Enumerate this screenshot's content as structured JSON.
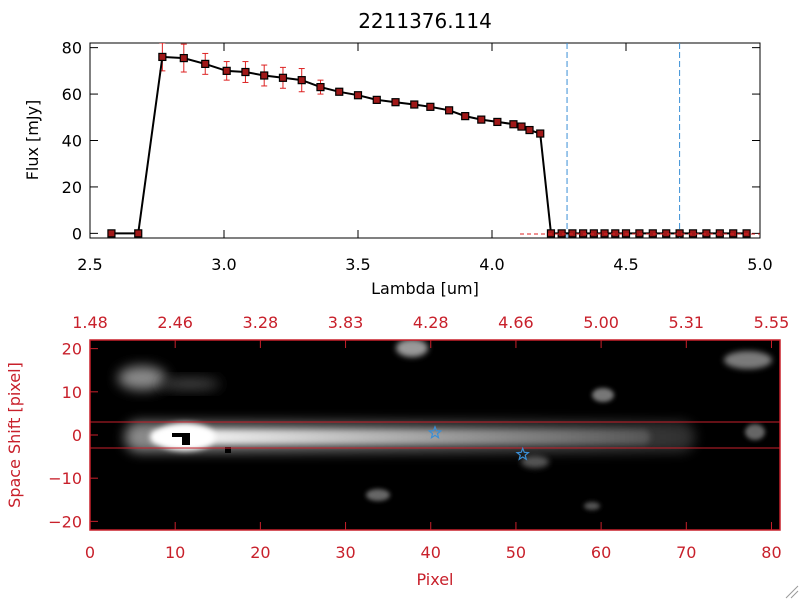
{
  "colors": {
    "axis": "#000000",
    "accent_red": "#c8202b",
    "errbar_red": "#dd2222",
    "marker_red": "#a01818",
    "guide_blue": "#3a8fd6",
    "star_blue": "#3a8fd6",
    "image_bg": "#000000"
  },
  "chart_data": [
    {
      "type": "line",
      "title": "2211376.114",
      "xlabel": "Lambda [um]",
      "ylabel": "Flux [mJy]",
      "xlim": [
        2.5,
        5.0
      ],
      "ylim": [
        -2,
        82
      ],
      "x_ticks": [
        2.5,
        3.0,
        3.5,
        4.0,
        4.5,
        5.0
      ],
      "x_tick_labels": [
        "2.5",
        "3.0",
        "3.5",
        "4.0",
        "4.5",
        "5.0"
      ],
      "y_ticks": [
        0,
        20,
        40,
        60,
        80
      ],
      "y_tick_labels": [
        "0",
        "20",
        "40",
        "60",
        "80"
      ],
      "guide_lines_x": [
        4.28,
        4.7
      ],
      "series": [
        {
          "x": [
            2.58,
            2.68,
            2.77,
            2.85,
            2.93,
            3.01,
            3.08,
            3.15,
            3.22,
            3.29,
            3.36,
            3.43,
            3.5,
            3.57,
            3.64,
            3.71,
            3.77,
            3.84,
            3.9,
            3.96,
            4.02,
            4.08,
            4.11,
            4.14,
            4.18,
            4.22,
            4.26,
            4.3,
            4.34,
            4.38,
            4.42,
            4.46,
            4.5,
            4.55,
            4.6,
            4.65,
            4.7,
            4.75,
            4.8,
            4.85,
            4.9,
            4.95
          ],
          "y": [
            0,
            0,
            76,
            75.5,
            73,
            70,
            69.5,
            68,
            67,
            66,
            63,
            61,
            59.5,
            57.5,
            56.5,
            55.5,
            54.5,
            53,
            50.5,
            49,
            48,
            47,
            46,
            44.5,
            43,
            0,
            0,
            0,
            0,
            0,
            0,
            0,
            0,
            0,
            0,
            0,
            0,
            0,
            0,
            0,
            0,
            0
          ],
          "err": [
            0,
            0,
            6,
            6,
            4.5,
            4,
            4.5,
            4.5,
            4.5,
            5,
            3,
            0,
            0,
            0,
            0,
            0,
            0,
            0,
            0,
            0,
            0,
            0,
            0,
            0,
            0,
            0,
            0,
            0,
            0,
            0,
            0,
            0,
            0,
            0,
            0,
            0,
            0,
            0,
            0,
            0,
            0,
            0
          ]
        }
      ]
    },
    {
      "type": "heatmap",
      "xlabel": "Pixel",
      "ylabel": "Space Shift [pixel]",
      "xlim": [
        0,
        81
      ],
      "ylim": [
        -22,
        22
      ],
      "x_ticks": [
        0,
        10,
        20,
        30,
        40,
        50,
        60,
        70,
        80
      ],
      "x_tick_labels": [
        "0",
        "10",
        "20",
        "30",
        "40",
        "50",
        "60",
        "70",
        "80"
      ],
      "y_ticks": [
        -20,
        -10,
        0,
        10,
        20
      ],
      "y_tick_labels": [
        "−20",
        "−10",
        "0",
        "10",
        "20"
      ],
      "top_tick_labels": [
        "1.48",
        "2.46",
        "3.28",
        "3.83",
        "4.28",
        "4.66",
        "5.00",
        "5.31",
        "5.55"
      ],
      "extraction_band": [
        -3,
        3
      ],
      "stars": [
        {
          "x": 40.5,
          "y": 0.5
        },
        {
          "x": 50.8,
          "y": -4.5
        }
      ]
    }
  ]
}
